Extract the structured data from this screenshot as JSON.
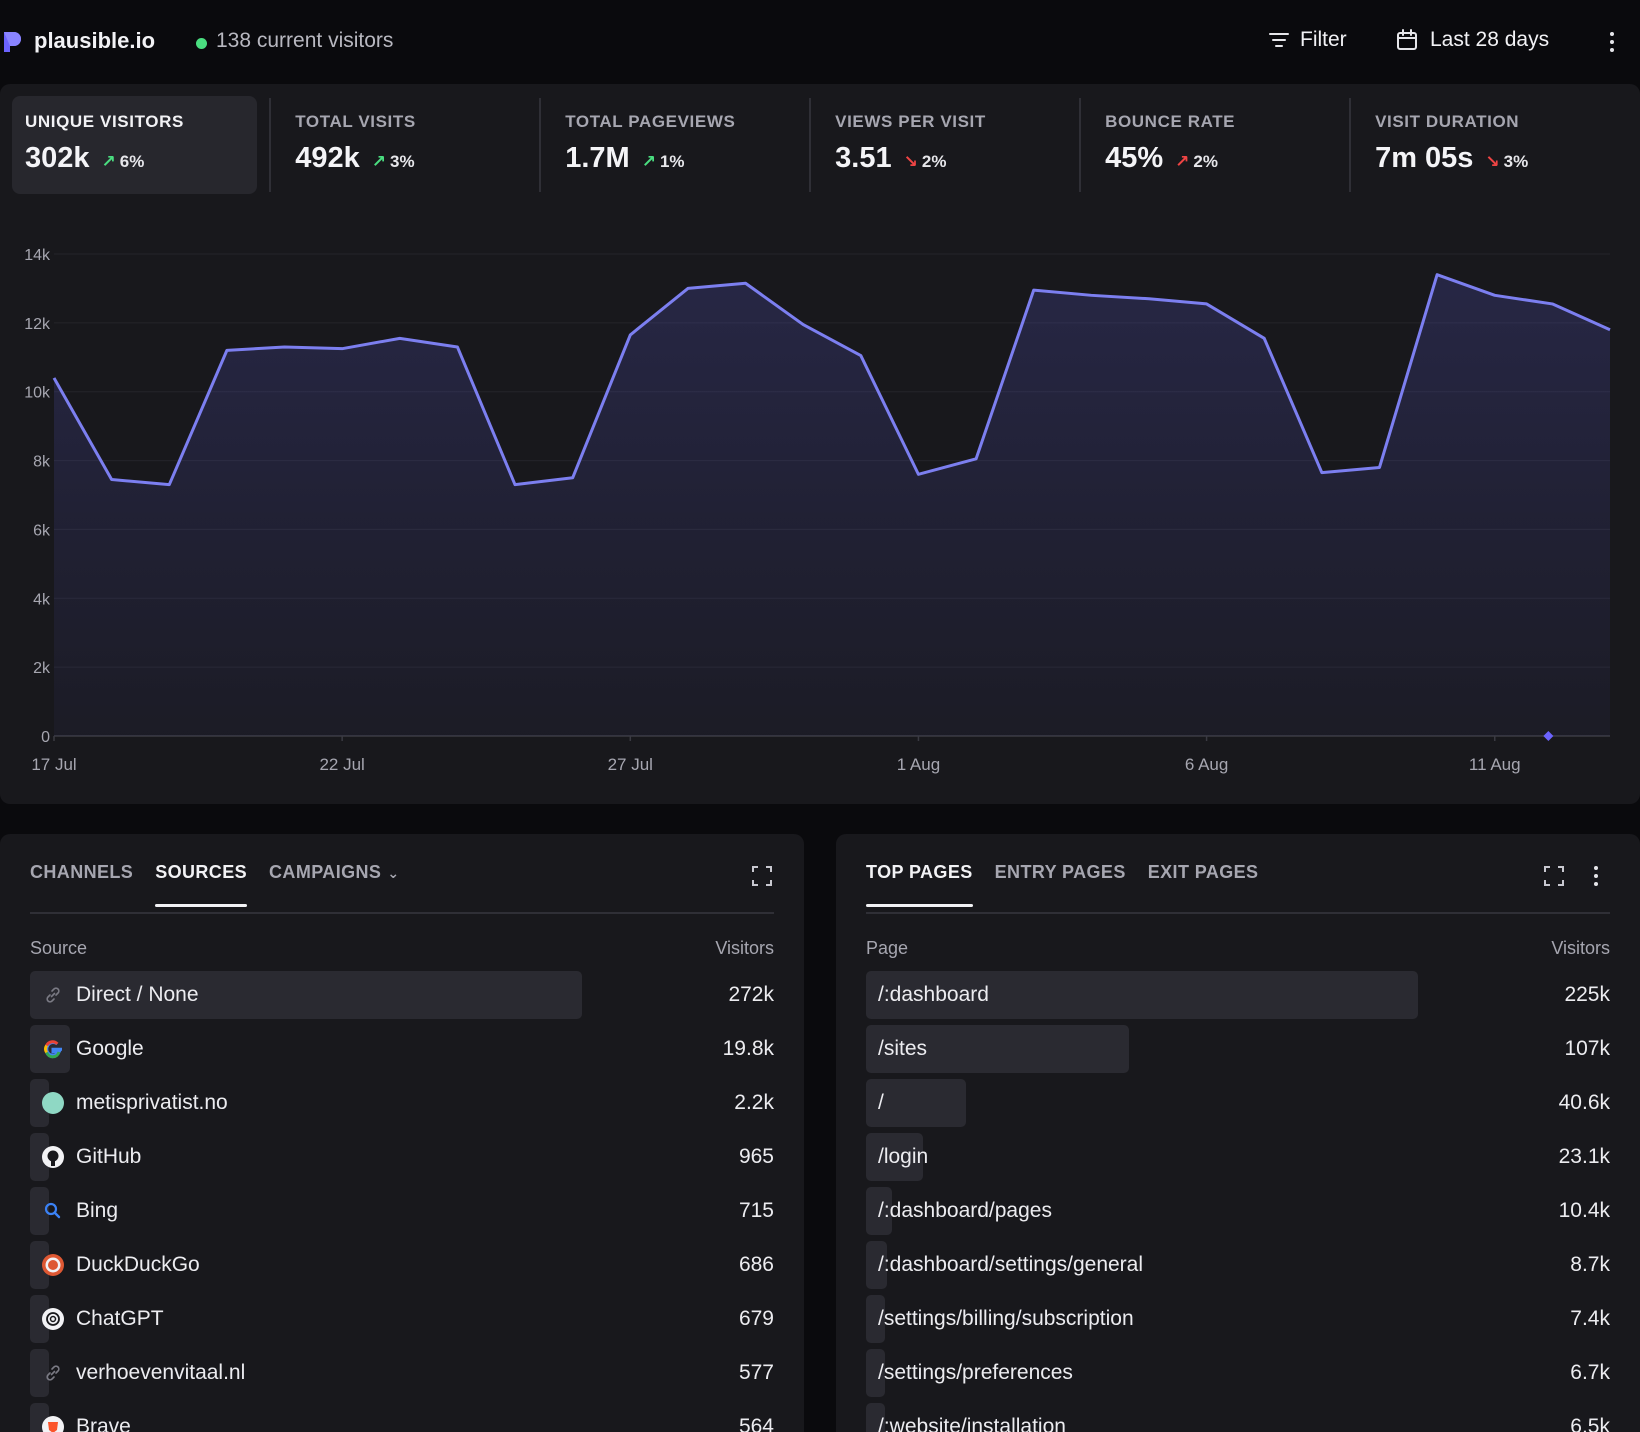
{
  "header": {
    "site": "plausible.io",
    "live_visitors": "138 current visitors",
    "filter_label": "Filter",
    "date_range": "Last 28 days"
  },
  "stats": [
    {
      "label": "UNIQUE VISITORS",
      "value": "302k",
      "change": "6%",
      "direction": "up"
    },
    {
      "label": "TOTAL VISITS",
      "value": "492k",
      "change": "3%",
      "direction": "up"
    },
    {
      "label": "TOTAL PAGEVIEWS",
      "value": "1.7M",
      "change": "1%",
      "direction": "up"
    },
    {
      "label": "VIEWS PER VISIT",
      "value": "3.51",
      "change": "2%",
      "direction": "down"
    },
    {
      "label": "BOUNCE RATE",
      "value": "45%",
      "change": "2%",
      "direction": "up"
    },
    {
      "label": "VISIT DURATION",
      "value": "7m 05s",
      "change": "3%",
      "direction": "down"
    }
  ],
  "chart_data": {
    "type": "area",
    "x": [
      "17 Jul",
      "18 Jul",
      "19 Jul",
      "20 Jul",
      "21 Jul",
      "22 Jul",
      "23 Jul",
      "24 Jul",
      "25 Jul",
      "26 Jul",
      "27 Jul",
      "28 Jul",
      "29 Jul",
      "30 Jul",
      "31 Jul",
      "1 Aug",
      "2 Aug",
      "3 Aug",
      "4 Aug",
      "5 Aug",
      "6 Aug",
      "7 Aug",
      "8 Aug",
      "9 Aug",
      "10 Aug",
      "11 Aug",
      "12 Aug",
      "13 Aug"
    ],
    "series": [
      {
        "values": [
          10400,
          7450,
          7300,
          11200,
          11300,
          11250,
          11550,
          11300,
          7300,
          7500,
          11650,
          13000,
          13150,
          11950,
          11050,
          7600,
          8050,
          12950,
          12800,
          12700,
          12550,
          11550,
          7650,
          7800,
          13400,
          12800,
          12550,
          11800
        ]
      }
    ],
    "x_ticks": [
      "17 Jul",
      "22 Jul",
      "27 Jul",
      "1 Aug",
      "6 Aug",
      "11 Aug"
    ],
    "y_ticks": [
      "0",
      "2k",
      "4k",
      "6k",
      "8k",
      "10k",
      "12k",
      "14k"
    ],
    "ylim": [
      0,
      14000
    ],
    "grid": true,
    "line_color": "#7c7ff0"
  },
  "sources_panel": {
    "tabs": [
      "CHANNELS",
      "SOURCES",
      "CAMPAIGNS"
    ],
    "active_tab": "SOURCES",
    "col_label": "Source",
    "col_value": "Visitors",
    "rows": [
      {
        "label": "Direct / None",
        "value": "272k",
        "count": 272000,
        "icon": "link-icon"
      },
      {
        "label": "Google",
        "value": "19.8k",
        "count": 19800,
        "icon": "google-icon"
      },
      {
        "label": "metisprivatist.no",
        "value": "2.2k",
        "count": 2200,
        "icon": "site-favicon-icon"
      },
      {
        "label": "GitHub",
        "value": "965",
        "count": 965,
        "icon": "github-icon"
      },
      {
        "label": "Bing",
        "value": "715",
        "count": 715,
        "icon": "bing-icon"
      },
      {
        "label": "DuckDuckGo",
        "value": "686",
        "count": 686,
        "icon": "duckduckgo-icon"
      },
      {
        "label": "ChatGPT",
        "value": "679",
        "count": 679,
        "icon": "chatgpt-icon"
      },
      {
        "label": "verhoevenvitaal.nl",
        "value": "577",
        "count": 577,
        "icon": "link-icon"
      },
      {
        "label": "Brave",
        "value": "564",
        "count": 564,
        "icon": "brave-icon"
      }
    ]
  },
  "pages_panel": {
    "tabs": [
      "TOP PAGES",
      "ENTRY PAGES",
      "EXIT PAGES"
    ],
    "active_tab": "TOP PAGES",
    "col_label": "Page",
    "col_value": "Visitors",
    "rows": [
      {
        "label": "/:dashboard",
        "value": "225k",
        "count": 225000
      },
      {
        "label": "/sites",
        "value": "107k",
        "count": 107000
      },
      {
        "label": "/",
        "value": "40.6k",
        "count": 40600
      },
      {
        "label": "/login",
        "value": "23.1k",
        "count": 23100
      },
      {
        "label": "/:dashboard/pages",
        "value": "10.4k",
        "count": 10400
      },
      {
        "label": "/:dashboard/settings/general",
        "value": "8.7k",
        "count": 8700
      },
      {
        "label": "/settings/billing/subscription",
        "value": "7.4k",
        "count": 7400
      },
      {
        "label": "/settings/preferences",
        "value": "6.7k",
        "count": 6700
      },
      {
        "label": "/:website/installation",
        "value": "6.5k",
        "count": 6500
      }
    ]
  }
}
